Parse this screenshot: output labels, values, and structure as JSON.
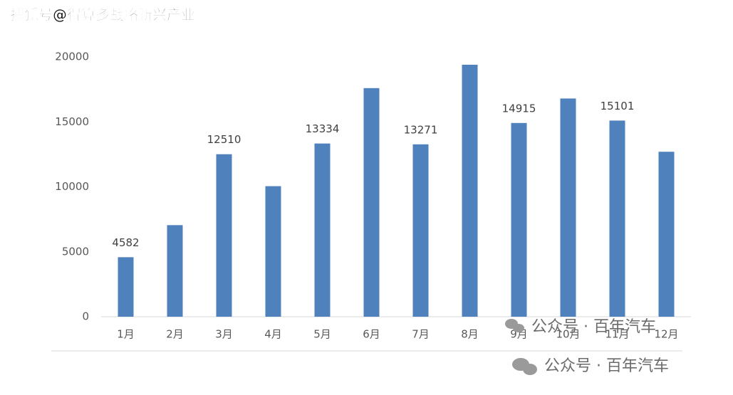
{
  "chart_data": {
    "type": "bar",
    "categories": [
      "1月",
      "2月",
      "3月",
      "4月",
      "5月",
      "6月",
      "7月",
      "8月",
      "9月",
      "10月",
      "11月",
      "12月"
    ],
    "values": [
      4582,
      7050,
      12510,
      10050,
      13334,
      17600,
      13271,
      19400,
      14915,
      16800,
      15101,
      12700
    ],
    "value_labels": [
      "4582",
      null,
      "12510",
      null,
      "13334",
      null,
      "13271",
      null,
      "14915",
      null,
      "15101",
      null
    ],
    "color": "#4f81bd",
    "ylim": [
      0,
      20000
    ],
    "yticks": [
      0,
      5000,
      10000,
      15000,
      20000
    ],
    "grid": false
  },
  "watermarks": {
    "source": "搜狐号@得算多战略新兴产业",
    "account": "公众号 · 百年汽车",
    "account_large": "公众号 · 百年汽车"
  }
}
